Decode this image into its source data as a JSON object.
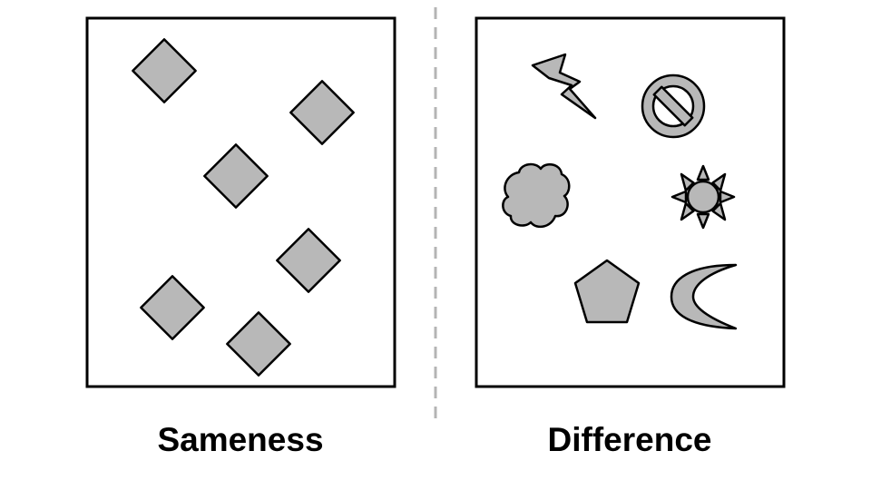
{
  "colors": {
    "shape_fill": "#b8b8b8",
    "stroke": "#000000",
    "divider": "#b4b4b4",
    "background": "#ffffff"
  },
  "panels": [
    {
      "title": "Sameness",
      "shapes": [
        "diamond",
        "diamond",
        "diamond",
        "diamond",
        "diamond",
        "diamond"
      ]
    },
    {
      "title": "Difference",
      "shapes": [
        "lightning",
        "no-entry-sign",
        "cloud",
        "sun",
        "pentagon",
        "crescent-moon"
      ]
    }
  ]
}
